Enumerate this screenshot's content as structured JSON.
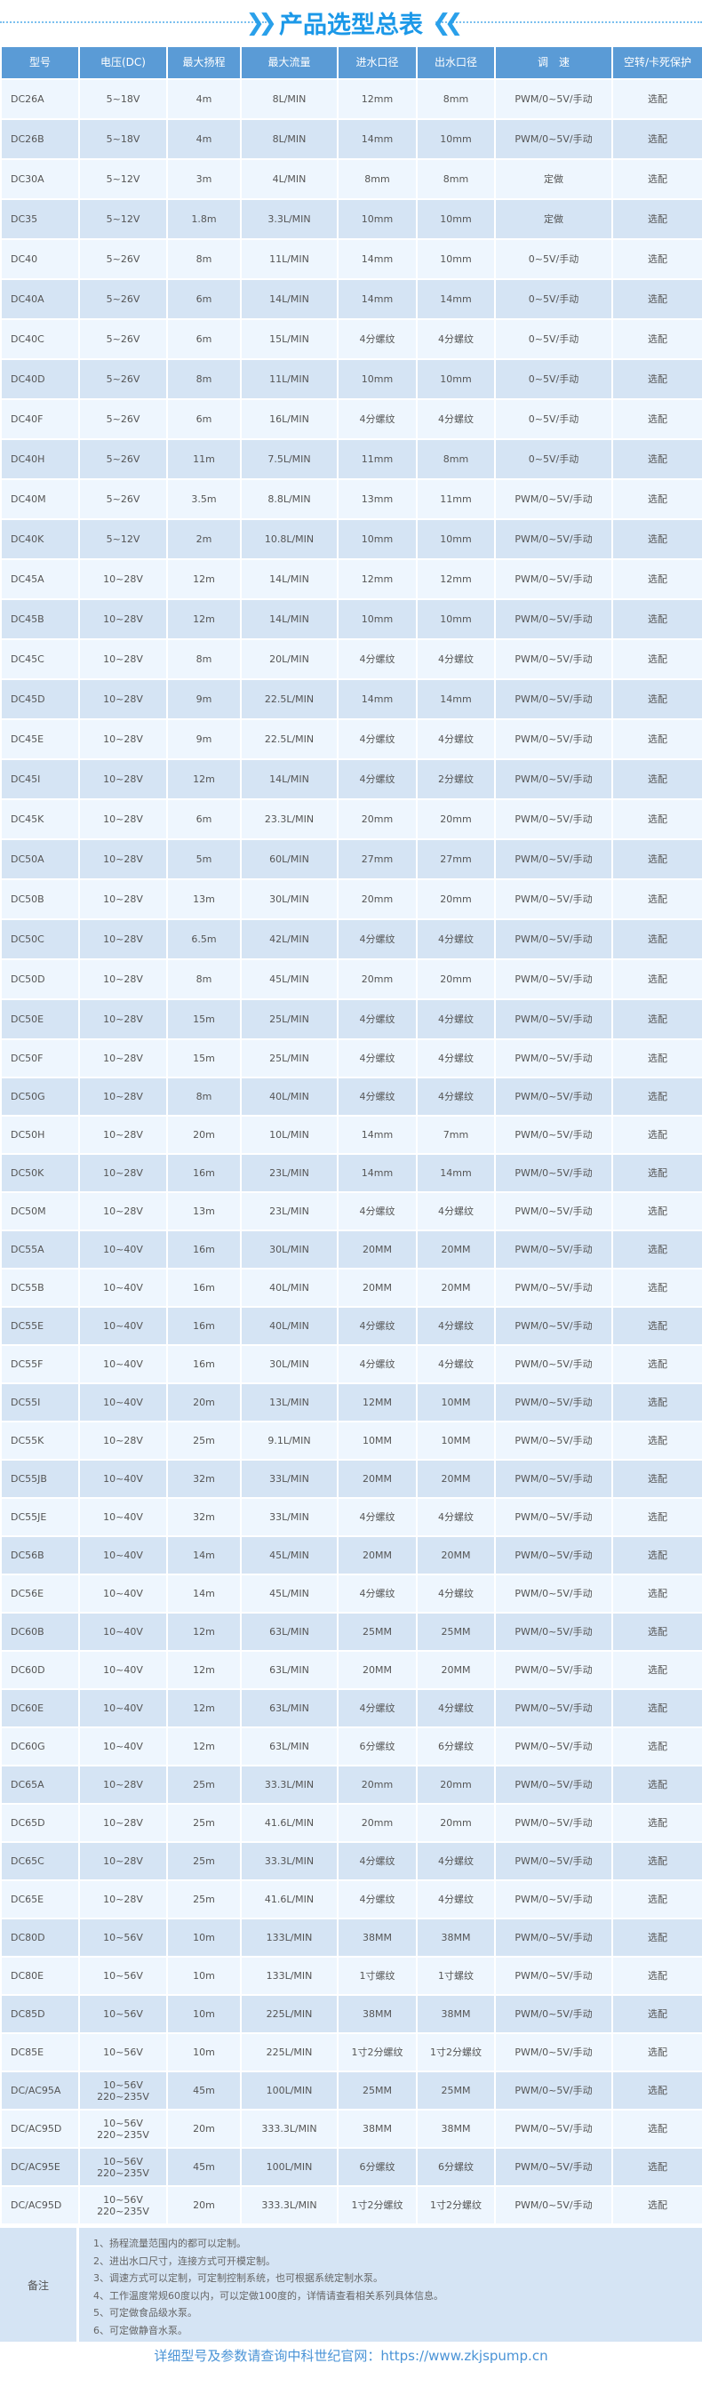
{
  "title": "产品选型总表",
  "colors": {
    "header_bg": "#5a9bd6",
    "row_light": "#eef6fe",
    "row_dark": "#d5e4f4",
    "title": "#1b98e8"
  },
  "headers": [
    "型号",
    "电压(DC)",
    "最大扬程",
    "最大流量",
    "进水口径",
    "出水口径",
    "调　速",
    "空转/卡死保护"
  ],
  "sections": [
    [
      [
        "DC26A",
        "5~18V",
        "4m",
        "8L/MIN",
        "12mm",
        "8mm",
        "PWM/0~5V/手动",
        "选配"
      ],
      [
        "DC26B",
        "5~18V",
        "4m",
        "8L/MIN",
        "14mm",
        "10mm",
        "PWM/0~5V/手动",
        "选配"
      ],
      [
        "DC30A",
        "5~12V",
        "3m",
        "4L/MIN",
        "8mm",
        "8mm",
        "定做",
        "选配"
      ],
      [
        "DC35",
        "5~12V",
        "1.8m",
        "3.3L/MIN",
        "10mm",
        "10mm",
        "定做",
        "选配"
      ],
      [
        "DC40",
        "5~26V",
        "8m",
        "11L/MIN",
        "14mm",
        "10mm",
        "0~5V/手动",
        "选配"
      ],
      [
        "DC40A",
        "5~26V",
        "6m",
        "14L/MIN",
        "14mm",
        "14mm",
        "0~5V/手动",
        "选配"
      ],
      [
        "DC40C",
        "5~26V",
        "6m",
        "15L/MIN",
        "4分螺纹",
        "4分螺纹",
        "0~5V/手动",
        "选配"
      ],
      [
        "DC40D",
        "5~26V",
        "8m",
        "11L/MIN",
        "10mm",
        "10mm",
        "0~5V/手动",
        "选配"
      ],
      [
        "DC40F",
        "5~26V",
        "6m",
        "16L/MIN",
        "4分螺纹",
        "4分螺纹",
        "0~5V/手动",
        "选配"
      ],
      [
        "DC40H",
        "5~26V",
        "11m",
        "7.5L/MIN",
        "11mm",
        "8mm",
        "0~5V/手动",
        "选配"
      ],
      [
        "DC40M",
        "5~26V",
        "3.5m",
        "8.8L/MIN",
        "13mm",
        "11mm",
        "PWM/0~5V/手动",
        "选配"
      ],
      [
        "DC40K",
        "5~12V",
        "2m",
        "10.8L/MIN",
        "10mm",
        "10mm",
        "PWM/0~5V/手动",
        "选配"
      ],
      [
        "DC45A",
        "10~28V",
        "12m",
        "14L/MIN",
        "12mm",
        "12mm",
        "PWM/0~5V/手动",
        "选配"
      ],
      [
        "DC45B",
        "10~28V",
        "12m",
        "14L/MIN",
        "10mm",
        "10mm",
        "PWM/0~5V/手动",
        "选配"
      ],
      [
        "DC45C",
        "10~28V",
        "8m",
        "20L/MIN",
        "4分螺纹",
        "4分螺纹",
        "PWM/0~5V/手动",
        "选配"
      ],
      [
        "DC45D",
        "10~28V",
        "9m",
        "22.5L/MIN",
        "14mm",
        "14mm",
        "PWM/0~5V/手动",
        "选配"
      ],
      [
        "DC45E",
        "10~28V",
        "9m",
        "22.5L/MIN",
        "4分螺纹",
        "4分螺纹",
        "PWM/0~5V/手动",
        "选配"
      ],
      [
        "DC45I",
        "10~28V",
        "12m",
        "14L/MIN",
        "4分螺纹",
        "2分螺纹",
        "PWM/0~5V/手动",
        "选配"
      ],
      [
        "DC45K",
        "10~28V",
        "6m",
        "23.3L/MIN",
        "20mm",
        "20mm",
        "PWM/0~5V/手动",
        "选配"
      ],
      [
        "DC50A",
        "10~28V",
        "5m",
        "60L/MIN",
        "27mm",
        "27mm",
        "PWM/0~5V/手动",
        "选配"
      ],
      [
        "DC50B",
        "10~28V",
        "13m",
        "30L/MIN",
        "20mm",
        "20mm",
        "PWM/0~5V/手动",
        "选配"
      ],
      [
        "DC50C",
        "10~28V",
        "6.5m",
        "42L/MIN",
        "4分螺纹",
        "4分螺纹",
        "PWM/0~5V/手动",
        "选配"
      ],
      [
        "DC50D",
        "10~28V",
        "8m",
        "45L/MIN",
        "20mm",
        "20mm",
        "PWM/0~5V/手动",
        "选配"
      ],
      [
        "DC50E",
        "10~28V",
        "15m",
        "25L/MIN",
        "4分螺纹",
        "4分螺纹",
        "PWM/0~5V/手动",
        "选配"
      ]
    ],
    [
      [
        "DC50F",
        "10~28V",
        "15m",
        "25L/MIN",
        "4分螺纹",
        "4分螺纹",
        "PWM/0~5V/手动",
        "选配"
      ],
      [
        "DC50G",
        "10~28V",
        "8m",
        "40L/MIN",
        "4分螺纹",
        "4分螺纹",
        "PWM/0~5V/手动",
        "选配"
      ],
      [
        "DC50H",
        "10~28V",
        "20m",
        "10L/MIN",
        "14mm",
        "7mm",
        "PWM/0~5V/手动",
        "选配"
      ],
      [
        "DC50K",
        "10~28V",
        "16m",
        "23L/MIN",
        "14mm",
        "14mm",
        "PWM/0~5V/手动",
        "选配"
      ],
      [
        "DC50M",
        "10~28V",
        "13m",
        "23L/MIN",
        "4分螺纹",
        "4分螺纹",
        "PWM/0~5V/手动",
        "选配"
      ],
      [
        "DC55A",
        "10~40V",
        "16m",
        "30L/MIN",
        "20MM",
        "20MM",
        "PWM/0~5V/手动",
        "选配"
      ],
      [
        "DC55B",
        "10~40V",
        "16m",
        "40L/MIN",
        "20MM",
        "20MM",
        "PWM/0~5V/手动",
        "选配"
      ],
      [
        "DC55E",
        "10~40V",
        "16m",
        "40L/MIN",
        "4分螺纹",
        "4分螺纹",
        "PWM/0~5V/手动",
        "选配"
      ],
      [
        "DC55F",
        "10~40V",
        "16m",
        "30L/MIN",
        "4分螺纹",
        "4分螺纹",
        "PWM/0~5V/手动",
        "选配"
      ],
      [
        "DC55I",
        "10~40V",
        "20m",
        "13L/MIN",
        "12MM",
        "10MM",
        "PWM/0~5V/手动",
        "选配"
      ],
      [
        "DC55K",
        "10~28V",
        "25m",
        "9.1L/MIN",
        "10MM",
        "10MM",
        "PWM/0~5V/手动",
        "选配"
      ],
      [
        "DC55JB",
        "10~40V",
        "32m",
        "33L/MIN",
        "20MM",
        "20MM",
        "PWM/0~5V/手动",
        "选配"
      ],
      [
        "DC55JE",
        "10~40V",
        "32m",
        "33L/MIN",
        "4分螺纹",
        "4分螺纹",
        "PWM/0~5V/手动",
        "选配"
      ],
      [
        "DC56B",
        "10~40V",
        "14m",
        "45L/MIN",
        "20MM",
        "20MM",
        "PWM/0~5V/手动",
        "选配"
      ],
      [
        "DC56E",
        "10~40V",
        "14m",
        "45L/MIN",
        "4分螺纹",
        "4分螺纹",
        "PWM/0~5V/手动",
        "选配"
      ],
      [
        "DC60B",
        "10~40V",
        "12m",
        "63L/MIN",
        "25MM",
        "25MM",
        "PWM/0~5V/手动",
        "选配"
      ],
      [
        "DC60D",
        "10~40V",
        "12m",
        "63L/MIN",
        "20MM",
        "20MM",
        "PWM/0~5V/手动",
        "选配"
      ],
      [
        "DC60E",
        "10~40V",
        "12m",
        "63L/MIN",
        "4分螺纹",
        "4分螺纹",
        "PWM/0~5V/手动",
        "选配"
      ],
      [
        "DC60G",
        "10~40V",
        "12m",
        "63L/MIN",
        "6分螺纹",
        "6分螺纹",
        "PWM/0~5V/手动",
        "选配"
      ],
      [
        "DC65A",
        "10~28V",
        "25m",
        "33.3L/MIN",
        "20mm",
        "20mm",
        "PWM/0~5V/手动",
        "选配"
      ],
      [
        "DC65D",
        "10~28V",
        "25m",
        "41.6L/MIN",
        "20mm",
        "20mm",
        "PWM/0~5V/手动",
        "选配"
      ],
      [
        "DC65C",
        "10~28V",
        "25m",
        "33.3L/MIN",
        "4分螺纹",
        "4分螺纹",
        "PWM/0~5V/手动",
        "选配"
      ],
      [
        "DC65E",
        "10~28V",
        "25m",
        "41.6L/MIN",
        "4分螺纹",
        "4分螺纹",
        "PWM/0~5V/手动",
        "选配"
      ]
    ],
    [
      [
        "DC80D",
        "10~56V",
        "10m",
        "133L/MIN",
        "38MM",
        "38MM",
        "PWM/0~5V/手动",
        "选配"
      ],
      [
        "DC80E",
        "10~56V",
        "10m",
        "133L/MIN",
        "1寸螺纹",
        "1寸螺纹",
        "PWM/0~5V/手动",
        "选配"
      ],
      [
        "DC85D",
        "10~56V",
        "10m",
        "225L/MIN",
        "38MM",
        "38MM",
        "PWM/0~5V/手动",
        "选配"
      ],
      [
        "DC85E",
        "10~56V",
        "10m",
        "225L/MIN",
        "1寸2分螺纹",
        "1寸2分螺纹",
        "PWM/0~5V/手动",
        "选配"
      ],
      [
        "DC/AC95A",
        "10~56V\n220~235V",
        "45m",
        "100L/MIN",
        "25MM",
        "25MM",
        "PWM/0~5V/手动",
        "选配"
      ],
      [
        "DC/AC95D",
        "10~56V\n220~235V",
        "20m",
        "333.3L/MIN",
        "38MM",
        "38MM",
        "PWM/0~5V/手动",
        "选配"
      ],
      [
        "DC/AC95E",
        "10~56V\n220~235V",
        "45m",
        "100L/MIN",
        "6分螺纹",
        "6分螺纹",
        "PWM/0~5V/手动",
        "选配"
      ],
      [
        "DC/AC95D",
        "10~56V\n220~235V",
        "20m",
        "333.3L/MIN",
        "1寸2分螺纹",
        "1寸2分螺纹",
        "PWM/0~5V/手动",
        "选配"
      ]
    ]
  ],
  "notes": {
    "label": "备注",
    "items": [
      "1、扬程流量范围内的都可以定制。",
      "2、进出水口尺寸，连接方式可开模定制。",
      "3、调速方式可以定制，可定制控制系统，也可根据系统定制水泵。",
      "4、工作温度常规60度以内，可以定做100度的，详情请查看相关系列具体信息。",
      "5、可定做食品级水泵。",
      "6、可定做静音水泵。"
    ]
  },
  "footer": "详细型号及参数请查询中科世纪官网：https://www.zkjspump.cn"
}
